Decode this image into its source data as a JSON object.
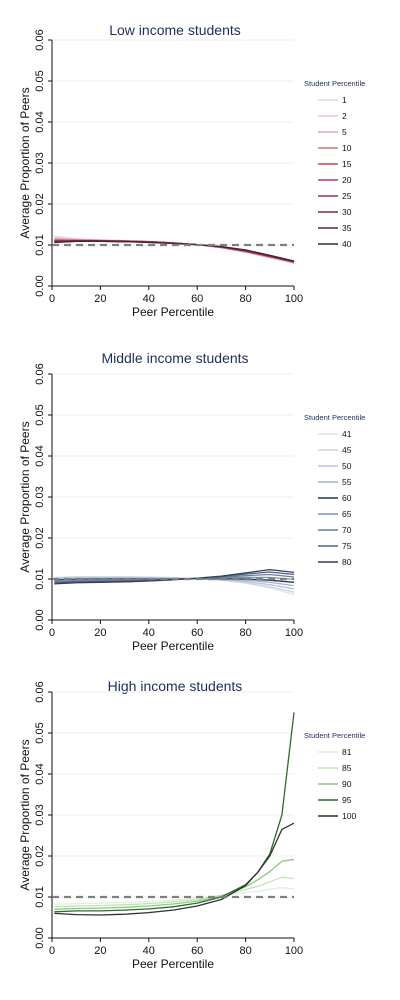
{
  "chart_data": [
    {
      "type": "line",
      "title": "Low income students",
      "xlabel": "Peer Percentile",
      "ylabel": "Average Proportion of Peers",
      "xlim": [
        0,
        100
      ],
      "ylim": [
        0,
        0.06
      ],
      "xticks": [
        0,
        20,
        40,
        60,
        80,
        100
      ],
      "yticks": [
        0,
        0.01,
        0.02,
        0.03,
        0.04,
        0.05,
        0.06
      ],
      "ytick_labels": [
        "0.00",
        "0.01",
        "0.02",
        "0.03",
        "0.04",
        "0.05",
        "0.06"
      ],
      "grid": true,
      "reference_line": {
        "y": 0.01,
        "style": "dashed",
        "color": "#7f7f7f"
      },
      "legend": {
        "title": "Student Percentile",
        "position": "right"
      },
      "x": [
        1,
        10,
        20,
        30,
        40,
        50,
        60,
        70,
        80,
        90,
        100
      ],
      "series": [
        {
          "name": "1",
          "color": "#e8d6d8",
          "values": [
            0.0121,
            0.0115,
            0.0112,
            0.0111,
            0.0109,
            0.0106,
            0.0101,
            0.0093,
            0.0082,
            0.0069,
            0.0055
          ]
        },
        {
          "name": "2",
          "color": "#e6c8cc",
          "values": [
            0.0118,
            0.0114,
            0.0112,
            0.0111,
            0.0108,
            0.0105,
            0.0101,
            0.0093,
            0.0083,
            0.0069,
            0.0056
          ]
        },
        {
          "name": "5",
          "color": "#e2a8b2",
          "values": [
            0.0115,
            0.0113,
            0.0112,
            0.011,
            0.0108,
            0.0105,
            0.0101,
            0.0094,
            0.0083,
            0.007,
            0.0057
          ]
        },
        {
          "name": "10",
          "color": "#d9707f",
          "values": [
            0.0113,
            0.0112,
            0.0111,
            0.011,
            0.0108,
            0.0105,
            0.0101,
            0.0094,
            0.0084,
            0.0071,
            0.0058
          ]
        },
        {
          "name": "15",
          "color": "#c9475f",
          "values": [
            0.0111,
            0.0111,
            0.0111,
            0.011,
            0.0108,
            0.0105,
            0.0101,
            0.0095,
            0.0085,
            0.0072,
            0.0058
          ]
        },
        {
          "name": "20",
          "color": "#b93a55",
          "values": [
            0.011,
            0.0111,
            0.011,
            0.0109,
            0.0108,
            0.0105,
            0.0101,
            0.0095,
            0.0085,
            0.0072,
            0.0059
          ]
        },
        {
          "name": "25",
          "color": "#a03048",
          "values": [
            0.0109,
            0.011,
            0.011,
            0.0109,
            0.0107,
            0.0104,
            0.0101,
            0.0095,
            0.0086,
            0.0073,
            0.0059
          ]
        },
        {
          "name": "30",
          "color": "#7f2a3b",
          "values": [
            0.0108,
            0.011,
            0.011,
            0.0109,
            0.0107,
            0.0104,
            0.0101,
            0.0096,
            0.0087,
            0.0074,
            0.006
          ]
        },
        {
          "name": "35",
          "color": "#5a2a33",
          "values": [
            0.0107,
            0.0109,
            0.0109,
            0.0108,
            0.0107,
            0.0104,
            0.0101,
            0.0096,
            0.0087,
            0.0074,
            0.006
          ]
        },
        {
          "name": "40",
          "color": "#3b2a2e",
          "values": [
            0.0106,
            0.0109,
            0.0109,
            0.0108,
            0.0106,
            0.0104,
            0.0101,
            0.0096,
            0.0088,
            0.0075,
            0.0061
          ]
        }
      ]
    },
    {
      "type": "line",
      "title": "Middle income students",
      "xlabel": "Peer Percentile",
      "ylabel": "Average Proportion of Peers",
      "xlim": [
        0,
        100
      ],
      "ylim": [
        0,
        0.06
      ],
      "xticks": [
        0,
        20,
        40,
        60,
        80,
        100
      ],
      "yticks": [
        0,
        0.01,
        0.02,
        0.03,
        0.04,
        0.05,
        0.06
      ],
      "ytick_labels": [
        "0.00",
        "0.01",
        "0.02",
        "0.03",
        "0.04",
        "0.05",
        "0.06"
      ],
      "grid": true,
      "reference_line": {
        "y": 0.01,
        "style": "dashed",
        "color": "#7f7f7f"
      },
      "legend": {
        "title": "Student Percentile",
        "position": "right"
      },
      "x": [
        1,
        10,
        20,
        30,
        40,
        50,
        60,
        70,
        80,
        90,
        100
      ],
      "series": [
        {
          "name": "41",
          "color": "#dde3ec",
          "values": [
            0.0104,
            0.0106,
            0.0106,
            0.0106,
            0.0105,
            0.0104,
            0.0101,
            0.0097,
            0.009,
            0.0078,
            0.0063
          ]
        },
        {
          "name": "45",
          "color": "#cdd6e3",
          "values": [
            0.0103,
            0.0105,
            0.0105,
            0.0105,
            0.0104,
            0.0103,
            0.0101,
            0.0097,
            0.0091,
            0.0081,
            0.0068
          ]
        },
        {
          "name": "50",
          "color": "#b9c6d8",
          "values": [
            0.0101,
            0.0103,
            0.0103,
            0.0103,
            0.0103,
            0.0102,
            0.0101,
            0.0098,
            0.0094,
            0.0086,
            0.0076
          ]
        },
        {
          "name": "55",
          "color": "#a3b3ca",
          "values": [
            0.0099,
            0.0101,
            0.0101,
            0.0101,
            0.0101,
            0.0101,
            0.0101,
            0.01,
            0.0097,
            0.0092,
            0.0084
          ]
        },
        {
          "name": "60",
          "color": "#1f3556",
          "values": [
            0.0097,
            0.0099,
            0.01,
            0.01,
            0.01,
            0.01,
            0.0101,
            0.0101,
            0.01,
            0.0097,
            0.0092
          ]
        },
        {
          "name": "65",
          "color": "#8094b0",
          "values": [
            0.0095,
            0.0097,
            0.0098,
            0.0098,
            0.0099,
            0.01,
            0.0101,
            0.0103,
            0.0104,
            0.0104,
            0.0099
          ]
        },
        {
          "name": "70",
          "color": "#6a7f9d",
          "values": [
            0.0093,
            0.0095,
            0.0096,
            0.0097,
            0.0098,
            0.0099,
            0.0101,
            0.0104,
            0.0108,
            0.0111,
            0.0105
          ]
        },
        {
          "name": "75",
          "color": "#4c6283",
          "values": [
            0.0091,
            0.0093,
            0.0094,
            0.0095,
            0.0097,
            0.0099,
            0.0101,
            0.0106,
            0.0112,
            0.0117,
            0.0111
          ]
        },
        {
          "name": "80",
          "color": "#333f55",
          "values": [
            0.0088,
            0.0091,
            0.0092,
            0.0093,
            0.0095,
            0.0098,
            0.0102,
            0.0107,
            0.0115,
            0.0123,
            0.0116
          ]
        }
      ]
    },
    {
      "type": "line",
      "title": "High income students",
      "xlabel": "Peer Percentile",
      "ylabel": "Average Proportion of Peers",
      "xlim": [
        0,
        100
      ],
      "ylim": [
        0,
        0.06
      ],
      "xticks": [
        0,
        20,
        40,
        60,
        80,
        100
      ],
      "yticks": [
        0,
        0.01,
        0.02,
        0.03,
        0.04,
        0.05,
        0.06
      ],
      "ytick_labels": [
        "0.00",
        "0.01",
        "0.02",
        "0.03",
        "0.04",
        "0.05",
        "0.06"
      ],
      "grid": true,
      "reference_line": {
        "y": 0.01,
        "style": "dashed",
        "color": "#7f7f7f"
      },
      "legend": {
        "title": "Student Percentile",
        "position": "right"
      },
      "x": [
        1,
        10,
        20,
        30,
        40,
        50,
        60,
        70,
        80,
        85,
        90,
        95,
        100
      ],
      "series": [
        {
          "name": "81",
          "color": "#e2eede",
          "values": [
            0.0082,
            0.0084,
            0.0085,
            0.0087,
            0.0089,
            0.0092,
            0.0097,
            0.0104,
            0.0111,
            0.0114,
            0.0119,
            0.0123,
            0.012
          ]
        },
        {
          "name": "85",
          "color": "#c2e1b8",
          "values": [
            0.0076,
            0.0078,
            0.0079,
            0.0081,
            0.0084,
            0.0088,
            0.0094,
            0.0104,
            0.0118,
            0.0126,
            0.0137,
            0.0148,
            0.0145
          ]
        },
        {
          "name": "90",
          "color": "#8cc97f",
          "values": [
            0.007,
            0.0072,
            0.0073,
            0.0075,
            0.0078,
            0.0083,
            0.009,
            0.0102,
            0.0125,
            0.0142,
            0.0162,
            0.0187,
            0.0192
          ]
        },
        {
          "name": "95",
          "color": "#2f6b30",
          "values": [
            0.0064,
            0.0066,
            0.0066,
            0.0068,
            0.0071,
            0.0076,
            0.0085,
            0.01,
            0.013,
            0.016,
            0.0205,
            0.03,
            0.055
          ]
        },
        {
          "name": "100",
          "color": "#2d332d",
          "values": [
            0.006,
            0.0057,
            0.0056,
            0.0058,
            0.0062,
            0.0068,
            0.0078,
            0.0094,
            0.0128,
            0.016,
            0.02,
            0.0265,
            0.028
          ]
        }
      ]
    }
  ]
}
